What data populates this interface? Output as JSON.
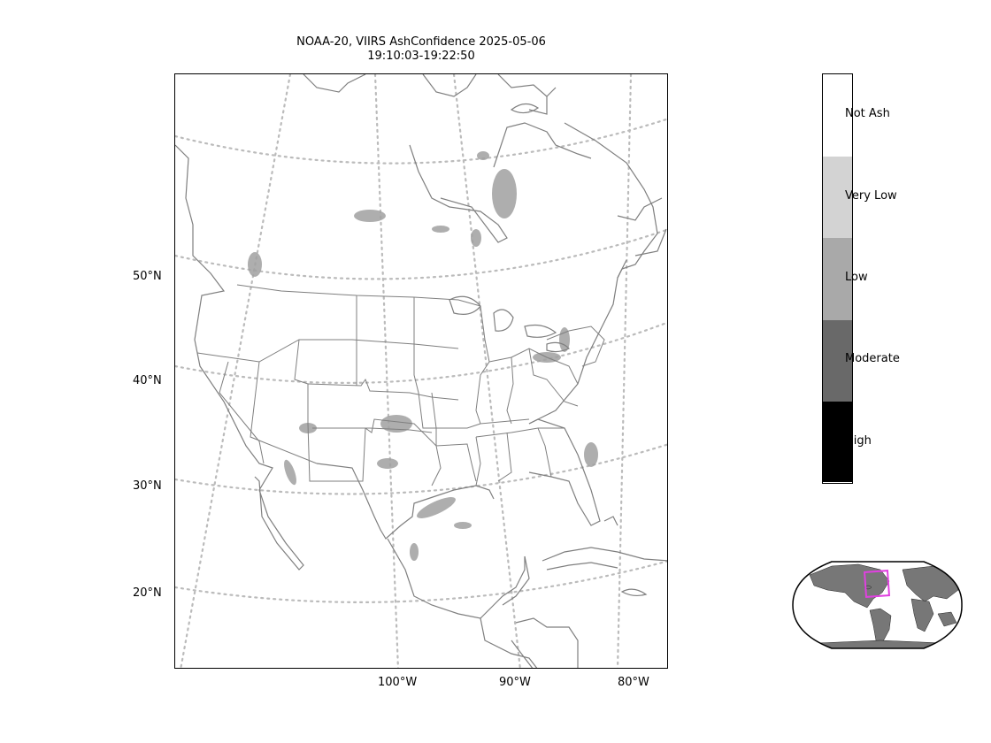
{
  "title": {
    "line1": "NOAA-20, VIIRS AshConfidence 2025-05-06",
    "line2": "19:10:03-19:22:50"
  },
  "map": {
    "lat_labels": [
      "50°N",
      "40°N",
      "30°N",
      "20°N"
    ],
    "lon_labels": [
      "100°W",
      "90°W",
      "80°W"
    ],
    "graticule_color": "#bbbbbb",
    "coast_color": "#7f7f7f",
    "ash_color": "#a0a0a0"
  },
  "legend": {
    "categories": [
      {
        "label": "Not Ash",
        "color": "#ffffff"
      },
      {
        "label": "Very Low",
        "color": "#d3d3d3"
      },
      {
        "label": "Low",
        "color": "#a9a9a9"
      },
      {
        "label": "Moderate",
        "color": "#696969"
      },
      {
        "label": "High",
        "color": "#000000"
      }
    ]
  },
  "inset": {
    "land_color": "#777777",
    "box_color": "#e040e0"
  }
}
